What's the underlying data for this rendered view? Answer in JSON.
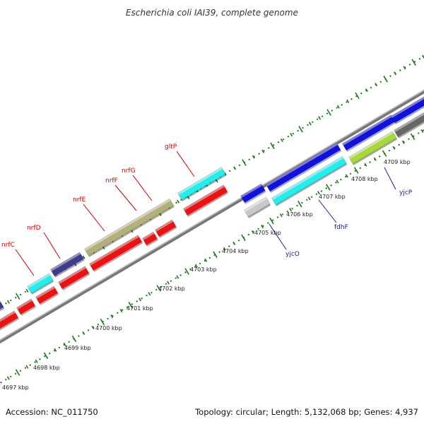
{
  "title": "Escherichia coli IAI39, complete genome",
  "footer": {
    "accession": "Accession: NC_011750",
    "summary": "Topology: circular; Length: 5,132,068 bp; Genes: 4,937"
  },
  "colors": {
    "red": "#ee1111",
    "blue": "#1111dd",
    "cyan": "#22eeee",
    "olive": "#b3b07a",
    "navy": "#3d3d8c",
    "gray": "#c8c8c8",
    "lime": "#a6d93b",
    "darkgray": "#666666",
    "tick_green": "#1a7a1a",
    "backbone": "#7f7f7f"
  },
  "kbp_labels": [
    "4697 kbp",
    "4698 kbp",
    "4699 kbp",
    "4700 kbp",
    "4701 kbp",
    "4702 kbp",
    "4703 kbp",
    "4704 kbp",
    "4705 kbp",
    "4706 kbp",
    "4707 kbp",
    "4708 kbp",
    "4709 kbp"
  ],
  "gene_labels_top": [
    {
      "text": "nrfC"
    },
    {
      "text": "nrfD"
    },
    {
      "text": "nrfE"
    },
    {
      "text": "nrfF"
    },
    {
      "text": "nrfG"
    },
    {
      "text": "gltP"
    }
  ],
  "gene_labels_bottom": [
    {
      "text": "yjcO"
    },
    {
      "text": "fdhF"
    },
    {
      "text": "yjcP"
    }
  ]
}
